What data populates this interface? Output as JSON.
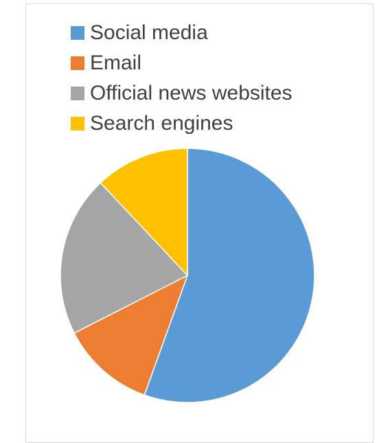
{
  "chart_data": {
    "type": "pie",
    "title": "",
    "series": [
      {
        "categories": [
          "Social media",
          "Email",
          "Official news websites",
          "Search engines"
        ],
        "values": [
          55.5,
          12,
          20.5,
          12
        ],
        "colors": [
          "#5B9BD5",
          "#ED7D31",
          "#A5A5A5",
          "#FFC000"
        ]
      }
    ],
    "legend": "top"
  }
}
